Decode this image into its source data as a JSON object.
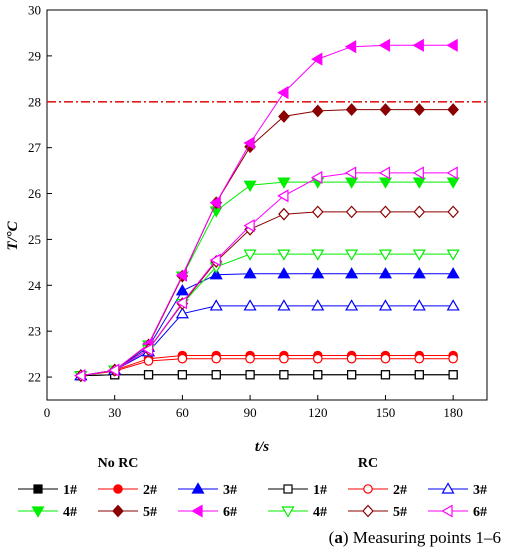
{
  "chart_data": {
    "type": "line",
    "xlabel_var": "t",
    "xlabel_unit": "/s",
    "ylabel_var": "T",
    "ylabel_unit": "/°C",
    "xlim": [
      0,
      195
    ],
    "ylim": [
      21.5,
      30
    ],
    "xticks": [
      0,
      30,
      60,
      90,
      120,
      150,
      180
    ],
    "yticks": [
      22,
      23,
      24,
      25,
      26,
      27,
      28,
      29,
      30
    ],
    "grid": false,
    "x": [
      15,
      30,
      45,
      60,
      75,
      90,
      105,
      120,
      135,
      150,
      165,
      180
    ],
    "reference_line": {
      "y": 28,
      "style": "dash-dot",
      "color": "#e31a1c"
    },
    "series": [
      {
        "name": "1#",
        "group": "No RC",
        "marker": "square",
        "filled": true,
        "color": "#000000",
        "values": [
          22.03,
          22.05,
          22.05,
          22.05,
          22.05,
          22.05,
          22.05,
          22.05,
          22.05,
          22.05,
          22.05,
          22.05
        ]
      },
      {
        "name": "2#",
        "group": "No RC",
        "marker": "circle",
        "filled": true,
        "color": "#ff0000",
        "values": [
          22.03,
          22.15,
          22.4,
          22.47,
          22.47,
          22.47,
          22.47,
          22.47,
          22.47,
          22.47,
          22.47,
          22.47
        ]
      },
      {
        "name": "3#",
        "group": "No RC",
        "marker": "triangle-up",
        "filled": true,
        "color": "#0000ff",
        "values": [
          22.03,
          22.15,
          22.65,
          23.88,
          24.23,
          24.25,
          24.25,
          24.25,
          24.25,
          24.25,
          24.25,
          24.25
        ]
      },
      {
        "name": "4#",
        "group": "No RC",
        "marker": "triangle-down",
        "filled": true,
        "color": "#00ee00",
        "values": [
          22.03,
          22.15,
          22.7,
          24.2,
          25.62,
          26.18,
          26.25,
          26.25,
          26.25,
          26.25,
          26.25,
          26.25
        ]
      },
      {
        "name": "5#",
        "group": "No RC",
        "marker": "diamond",
        "filled": true,
        "color": "#8b0000",
        "values": [
          22.03,
          22.15,
          22.7,
          24.2,
          25.8,
          27.02,
          27.68,
          27.8,
          27.83,
          27.83,
          27.83,
          27.83
        ]
      },
      {
        "name": "6#",
        "group": "No RC",
        "marker": "triangle-left",
        "filled": true,
        "color": "#ff00ff",
        "values": [
          22.03,
          22.15,
          22.72,
          24.22,
          25.8,
          27.1,
          28.2,
          28.93,
          29.2,
          29.23,
          29.23,
          29.23
        ]
      },
      {
        "name": "1#",
        "group": "RC",
        "marker": "square",
        "filled": false,
        "color": "#000000",
        "values": [
          22.03,
          22.05,
          22.05,
          22.05,
          22.05,
          22.05,
          22.05,
          22.05,
          22.05,
          22.05,
          22.05,
          22.05
        ]
      },
      {
        "name": "2#",
        "group": "RC",
        "marker": "circle",
        "filled": false,
        "color": "#ff0000",
        "values": [
          22.03,
          22.13,
          22.35,
          22.4,
          22.4,
          22.4,
          22.4,
          22.4,
          22.4,
          22.4,
          22.4,
          22.4
        ]
      },
      {
        "name": "3#",
        "group": "RC",
        "marker": "triangle-up",
        "filled": false,
        "color": "#0000ff",
        "values": [
          22.03,
          22.15,
          22.55,
          23.38,
          23.55,
          23.55,
          23.55,
          23.55,
          23.55,
          23.55,
          23.55,
          23.55
        ]
      },
      {
        "name": "4#",
        "group": "RC",
        "marker": "triangle-down",
        "filled": false,
        "color": "#00ee00",
        "values": [
          22.03,
          22.15,
          22.6,
          23.6,
          24.4,
          24.68,
          24.68,
          24.68,
          24.68,
          24.68,
          24.68,
          24.68
        ]
      },
      {
        "name": "5#",
        "group": "RC",
        "marker": "diamond",
        "filled": false,
        "color": "#8b0000",
        "values": [
          22.03,
          22.15,
          22.6,
          23.6,
          24.52,
          25.22,
          25.55,
          25.6,
          25.6,
          25.6,
          25.6,
          25.6
        ]
      },
      {
        "name": "6#",
        "group": "RC",
        "marker": "triangle-left",
        "filled": false,
        "color": "#ff00ff",
        "values": [
          22.03,
          22.15,
          22.6,
          23.62,
          24.55,
          25.3,
          25.95,
          26.35,
          26.45,
          26.45,
          26.45,
          26.45
        ]
      }
    ],
    "legend": {
      "placement": "bottom",
      "groups": [
        {
          "title": "No RC",
          "items": [
            "1#",
            "2#",
            "3#",
            "4#",
            "5#",
            "6#"
          ]
        },
        {
          "title": "RC",
          "items": [
            "1#",
            "2#",
            "3#",
            "4#",
            "5#",
            "6#"
          ]
        }
      ]
    }
  },
  "caption": {
    "prefix": "(",
    "letter": "a",
    "rest": ") Measuring points 1–6"
  }
}
